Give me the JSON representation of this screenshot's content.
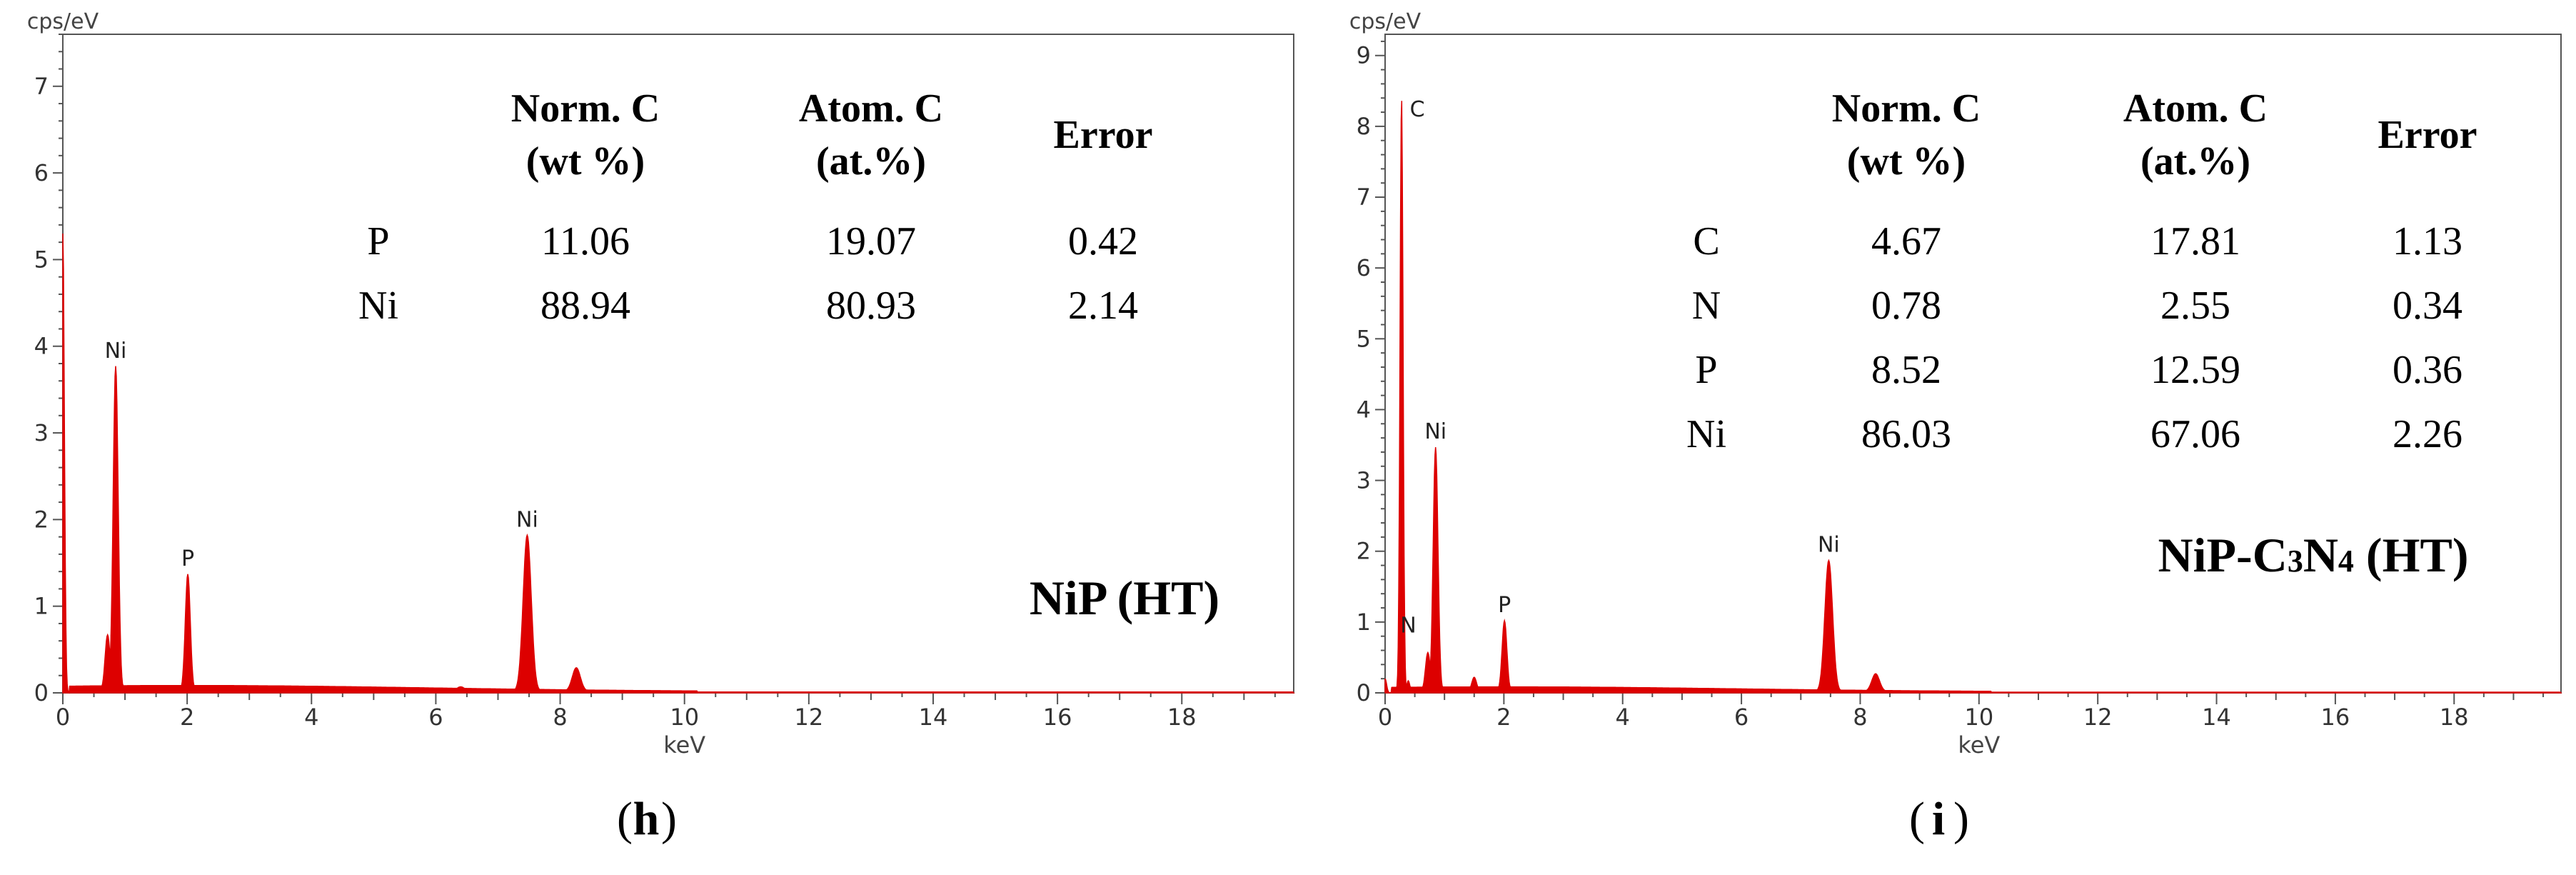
{
  "figure": {
    "colors": {
      "spectrum": "#dd0000",
      "axis": "#555555",
      "text": "#000000"
    },
    "panels": [
      {
        "panel_label": "h",
        "sample_label": "NiP (HT)",
        "sample_label_parts": [
          {
            "text": "NiP (HT)",
            "sub": false
          }
        ],
        "ylabel": "cps/eV",
        "xlabel": "keV",
        "table": {
          "headers": [
            [
              "",
              ""
            ],
            [
              "Norm. C",
              "(wt %)"
            ],
            [
              "Atom. C",
              "(at.%)"
            ],
            [
              "Error",
              ""
            ]
          ],
          "rows": [
            [
              "P",
              "11.06",
              "19.07",
              "0.42"
            ],
            [
              "Ni",
              "88.94",
              "80.93",
              "2.14"
            ]
          ]
        }
      },
      {
        "panel_label": "i",
        "sample_label": "NiP-C3N4 (HT)",
        "sample_label_parts": [
          {
            "text": "NiP-C",
            "sub": false
          },
          {
            "text": "3",
            "sub": true
          },
          {
            "text": "N",
            "sub": false
          },
          {
            "text": "4",
            "sub": true
          },
          {
            "text": " (HT)",
            "sub": false
          }
        ],
        "ylabel": "cps/eV",
        "xlabel": "keV",
        "table": {
          "headers": [
            [
              "",
              ""
            ],
            [
              "Norm. C",
              "(wt %)"
            ],
            [
              "Atom. C",
              "(at.%)"
            ],
            [
              "Error",
              ""
            ]
          ],
          "rows": [
            [
              "C",
              "4.67",
              "17.81",
              "1.13"
            ],
            [
              "N",
              "0.78",
              "2.55",
              "0.34"
            ],
            [
              "P",
              "8.52",
              "12.59",
              "0.36"
            ],
            [
              "Ni",
              "86.03",
              "67.06",
              "2.26"
            ]
          ]
        }
      }
    ]
  },
  "chart_data": [
    {
      "type": "area",
      "title": "",
      "xlabel": "keV",
      "ylabel": "cps/eV",
      "xlim": [
        0,
        19.8
      ],
      "ylim": [
        0,
        7.6
      ],
      "xticks": [
        0,
        2,
        4,
        6,
        8,
        10,
        12,
        14,
        16,
        18
      ],
      "yticks": [
        0,
        1,
        2,
        3,
        4,
        5,
        6,
        7
      ],
      "grid": false,
      "baseline": 0.07,
      "peaks": [
        {
          "x": 0.0,
          "y": 5.3,
          "label": ""
        },
        {
          "x": 0.72,
          "y": 0.65,
          "label": ""
        },
        {
          "x": 0.85,
          "y": 3.75,
          "label": "Ni"
        },
        {
          "x": 2.01,
          "y": 1.35,
          "label": "P"
        },
        {
          "x": 6.4,
          "y": 0.05,
          "label": ""
        },
        {
          "x": 7.47,
          "y": 1.8,
          "label": "Ni"
        },
        {
          "x": 8.26,
          "y": 0.27,
          "label": ""
        }
      ]
    },
    {
      "type": "area",
      "title": "",
      "xlabel": "keV",
      "ylabel": "cps/eV",
      "xlim": [
        0,
        19.8
      ],
      "ylim": [
        0,
        9.3
      ],
      "xticks": [
        0,
        2,
        4,
        6,
        8,
        10,
        12,
        14,
        16,
        18
      ],
      "yticks": [
        0,
        1,
        2,
        3,
        4,
        5,
        6,
        7,
        8,
        9
      ],
      "grid": false,
      "baseline": 0.07,
      "peaks": [
        {
          "x": 0.0,
          "y": 0.2,
          "label": ""
        },
        {
          "x": 0.05,
          "y": 0.0,
          "label": ""
        },
        {
          "x": 0.277,
          "y": 8.4,
          "label": "C"
        },
        {
          "x": 0.39,
          "y": 0.15,
          "label": "N"
        },
        {
          "x": 0.72,
          "y": 0.55,
          "label": ""
        },
        {
          "x": 0.85,
          "y": 3.45,
          "label": "Ni"
        },
        {
          "x": 1.5,
          "y": 0.2,
          "label": ""
        },
        {
          "x": 2.01,
          "y": 1.0,
          "label": "P"
        },
        {
          "x": 7.47,
          "y": 1.85,
          "label": "Ni"
        },
        {
          "x": 8.26,
          "y": 0.25,
          "label": ""
        }
      ]
    }
  ]
}
